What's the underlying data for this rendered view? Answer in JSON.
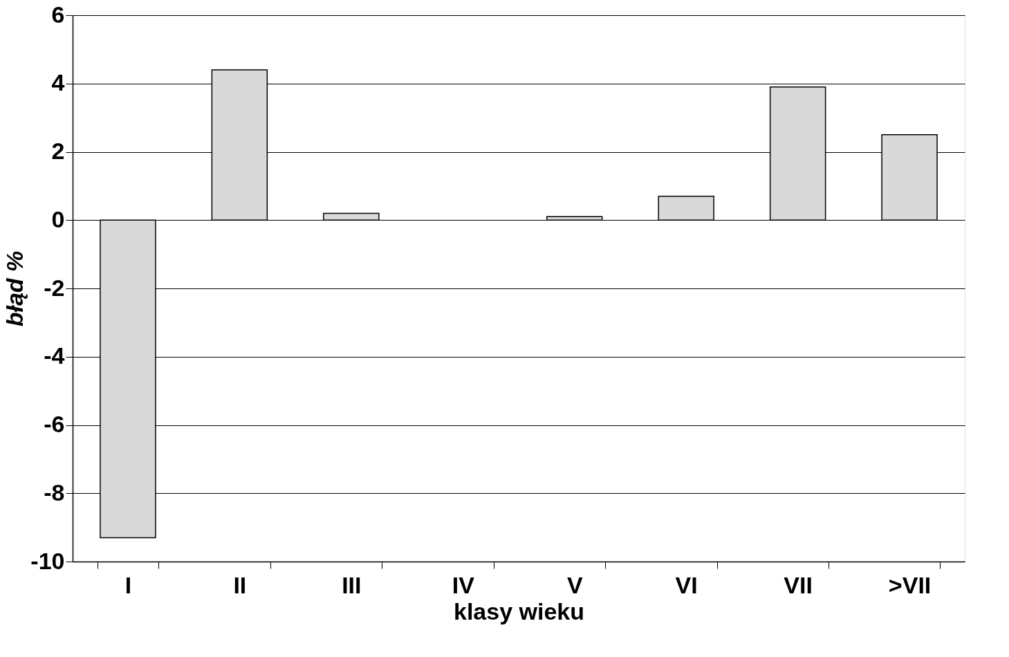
{
  "chart_data": {
    "type": "bar",
    "xlabel": "klasy wieku",
    "ylabel": "błąd %",
    "categories": [
      "I",
      "II",
      "III",
      "IV",
      "V",
      "VI",
      "VII",
      ">VII"
    ],
    "values": [
      -9.3,
      4.4,
      0.2,
      null,
      0.1,
      0.7,
      3.9,
      2.5
    ],
    "color": "#d9d9d9",
    "ylim": [
      -10,
      6
    ],
    "yticks": [
      -10,
      -8,
      -6,
      -4,
      -2,
      0,
      2,
      4,
      6
    ],
    "grid": "y"
  }
}
